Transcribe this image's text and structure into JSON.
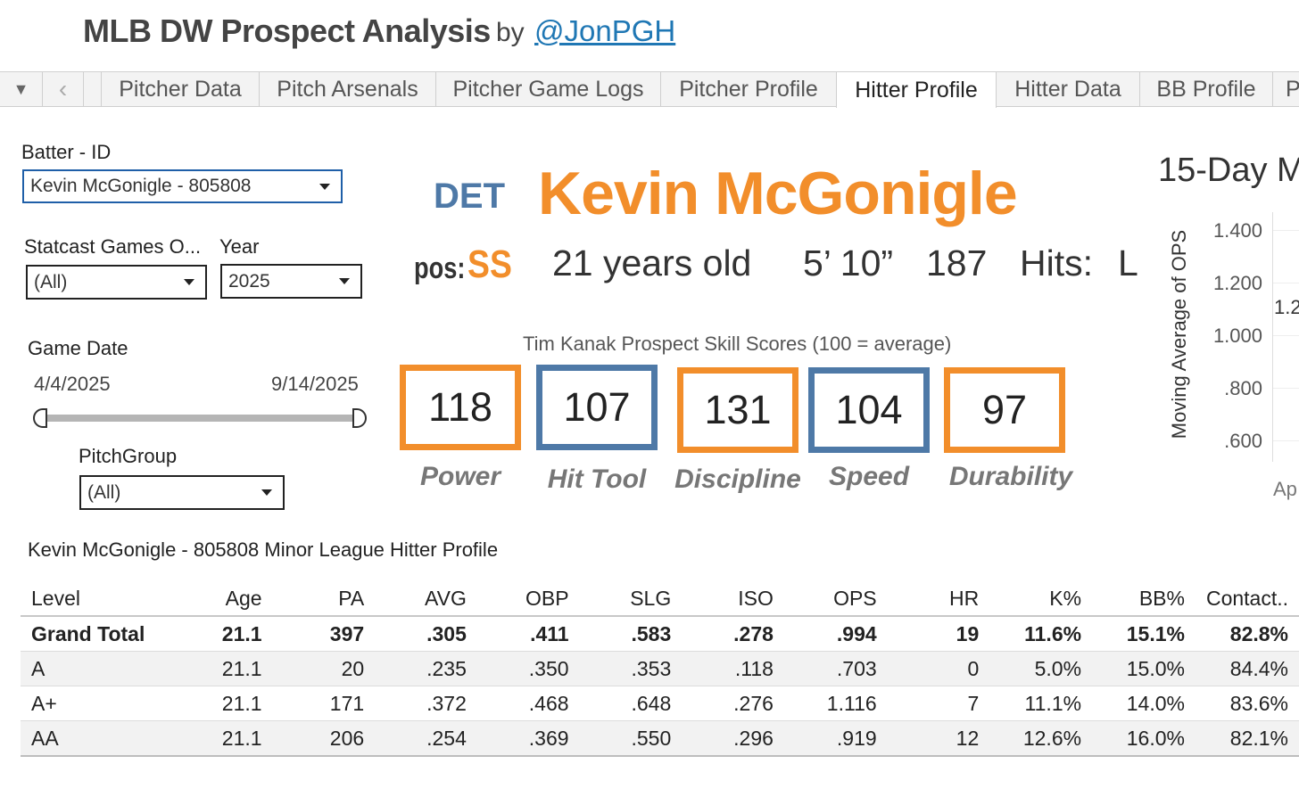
{
  "header": {
    "title": "MLB DW Prospect Analysis",
    "by": "by",
    "author_link": "@JonPGH"
  },
  "tabs": {
    "nav_down": "▼",
    "nav_prev": "‹",
    "items": [
      {
        "label": "Pitcher Data"
      },
      {
        "label": "Pitch Arsenals"
      },
      {
        "label": "Pitcher Game Logs"
      },
      {
        "label": "Pitcher Profile"
      },
      {
        "label": "Hitter Profile",
        "active": true
      },
      {
        "label": "Hitter Data"
      },
      {
        "label": "BB Profile"
      },
      {
        "label": "P"
      }
    ]
  },
  "filters": {
    "batter_label": "Batter - ID",
    "batter_value": "Kevin McGonigle - 805808",
    "statcast_label": "Statcast Games O...",
    "statcast_value": "(All)",
    "year_label": "Year",
    "year_value": "2025",
    "game_date_label": "Game Date",
    "date_start": "4/4/2025",
    "date_end": "9/14/2025",
    "pitchgroup_label": "PitchGroup",
    "pitchgroup_value": "(All)"
  },
  "player": {
    "team": "DET",
    "name": "Kevin McGonigle",
    "pos_label": "pos:",
    "pos": "SS",
    "age": "21 years old",
    "height": "5’ 10”",
    "weight": "187",
    "hits_label": "Hits:",
    "hits": "L"
  },
  "skill_scores": {
    "title": "Tim Kanak Prospect Skill Scores (100 = average)",
    "items": [
      {
        "value": "118",
        "label": "Power",
        "color": "#f28e2b"
      },
      {
        "value": "107",
        "label": "Hit Tool",
        "color": "#4e79a7"
      },
      {
        "value": "131",
        "label": "Discipline",
        "color": "#f28e2b"
      },
      {
        "value": "104",
        "label": "Speed",
        "color": "#4e79a7"
      },
      {
        "value": "97",
        "label": "Durability",
        "color": "#f28e2b"
      }
    ]
  },
  "chart": {
    "title": "15-Day M",
    "ylabel": "Moving Average of OPS",
    "yticks": [
      "1.400",
      "1.200",
      "1.000",
      ".800",
      ".600"
    ],
    "data_label": "1.2",
    "xtick": "Ap"
  },
  "table": {
    "title": "Kevin McGonigle - 805808 Minor League Hitter Profile",
    "columns": [
      "Level",
      "Age",
      "PA",
      "AVG",
      "OBP",
      "SLG",
      "ISO",
      "OPS",
      "HR",
      "K%",
      "BB%",
      "Contact.."
    ],
    "rows": [
      [
        "Grand Total",
        "21.1",
        "397",
        ".305",
        ".411",
        ".583",
        ".278",
        ".994",
        "19",
        "11.6%",
        "15.1%",
        "82.8%"
      ],
      [
        "A",
        "21.1",
        "20",
        ".235",
        ".350",
        ".353",
        ".118",
        ".703",
        "0",
        "5.0%",
        "15.0%",
        "84.4%"
      ],
      [
        "A+",
        "21.1",
        "171",
        ".372",
        ".468",
        ".648",
        ".276",
        "1.116",
        "7",
        "11.1%",
        "14.0%",
        "83.6%"
      ],
      [
        "AA",
        "21.1",
        "206",
        ".254",
        ".369",
        ".550",
        ".296",
        ".919",
        "12",
        "12.6%",
        "16.0%",
        "82.1%"
      ]
    ]
  },
  "colors": {
    "orange": "#f28e2b",
    "blue": "#4e79a7",
    "link": "#1f77b4"
  }
}
